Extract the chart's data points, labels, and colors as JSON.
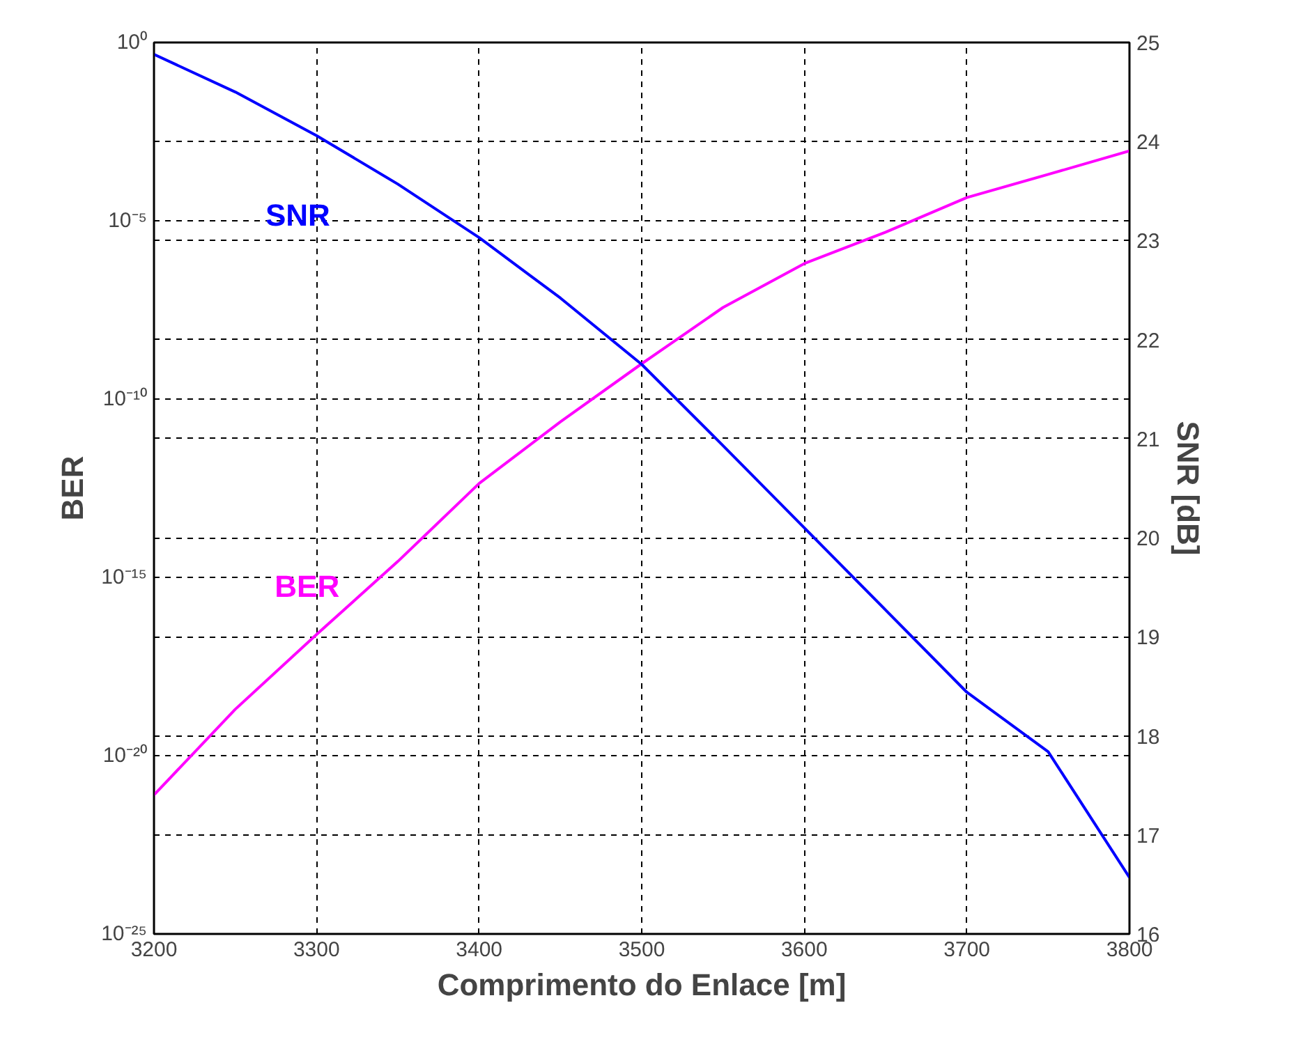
{
  "chart_data": {
    "type": "line",
    "xlabel": "Comprimento do Enlace [m]",
    "ylabel": "BER",
    "y2label": "SNR [dB]",
    "x": [
      3200,
      3250,
      3300,
      3350,
      3400,
      3450,
      3500,
      3550,
      3600,
      3650,
      3700,
      3750,
      3800
    ],
    "series": [
      {
        "name": "BER",
        "color": "#ff00ff",
        "values": [
          7.9e-22,
          2e-19,
          2.5e-17,
          2.8e-15,
          4.3e-13,
          2.3e-11,
          9.8e-10,
          3.7e-08,
          6.3e-07,
          4.8e-06,
          4.5e-05,
          0.0002,
          0.00091
        ]
      },
      {
        "name": "SNR",
        "color": "#0000ff",
        "axis": "y2",
        "values": [
          24.88,
          24.5,
          24.06,
          23.57,
          23.03,
          22.42,
          21.75,
          20.93,
          20.1,
          19.27,
          18.44,
          17.84,
          16.57
        ]
      }
    ],
    "log": "y",
    "xlim": [
      3200,
      3800
    ],
    "xticks": [
      3200,
      3300,
      3400,
      3500,
      3600,
      3700,
      3800
    ],
    "ylim": [
      1e-25,
      1
    ],
    "yticks": [
      {
        "value": 1,
        "label": "10⁰"
      },
      {
        "value": 1e-05,
        "label": "10⁻⁵"
      },
      {
        "value": 1e-10,
        "label": "10⁻¹⁰"
      },
      {
        "value": 1e-15,
        "label": "10⁻¹⁵"
      },
      {
        "value": 1e-20,
        "label": "10⁻²⁰"
      },
      {
        "value": 1e-25,
        "label": "10⁻²⁵"
      }
    ],
    "y2lim": [
      16,
      25
    ],
    "y2ticks": [
      16,
      17,
      18,
      19,
      20,
      21,
      22,
      23,
      24,
      25
    ],
    "grid": true,
    "legend": false,
    "line_style": "solid",
    "marker": "none"
  }
}
